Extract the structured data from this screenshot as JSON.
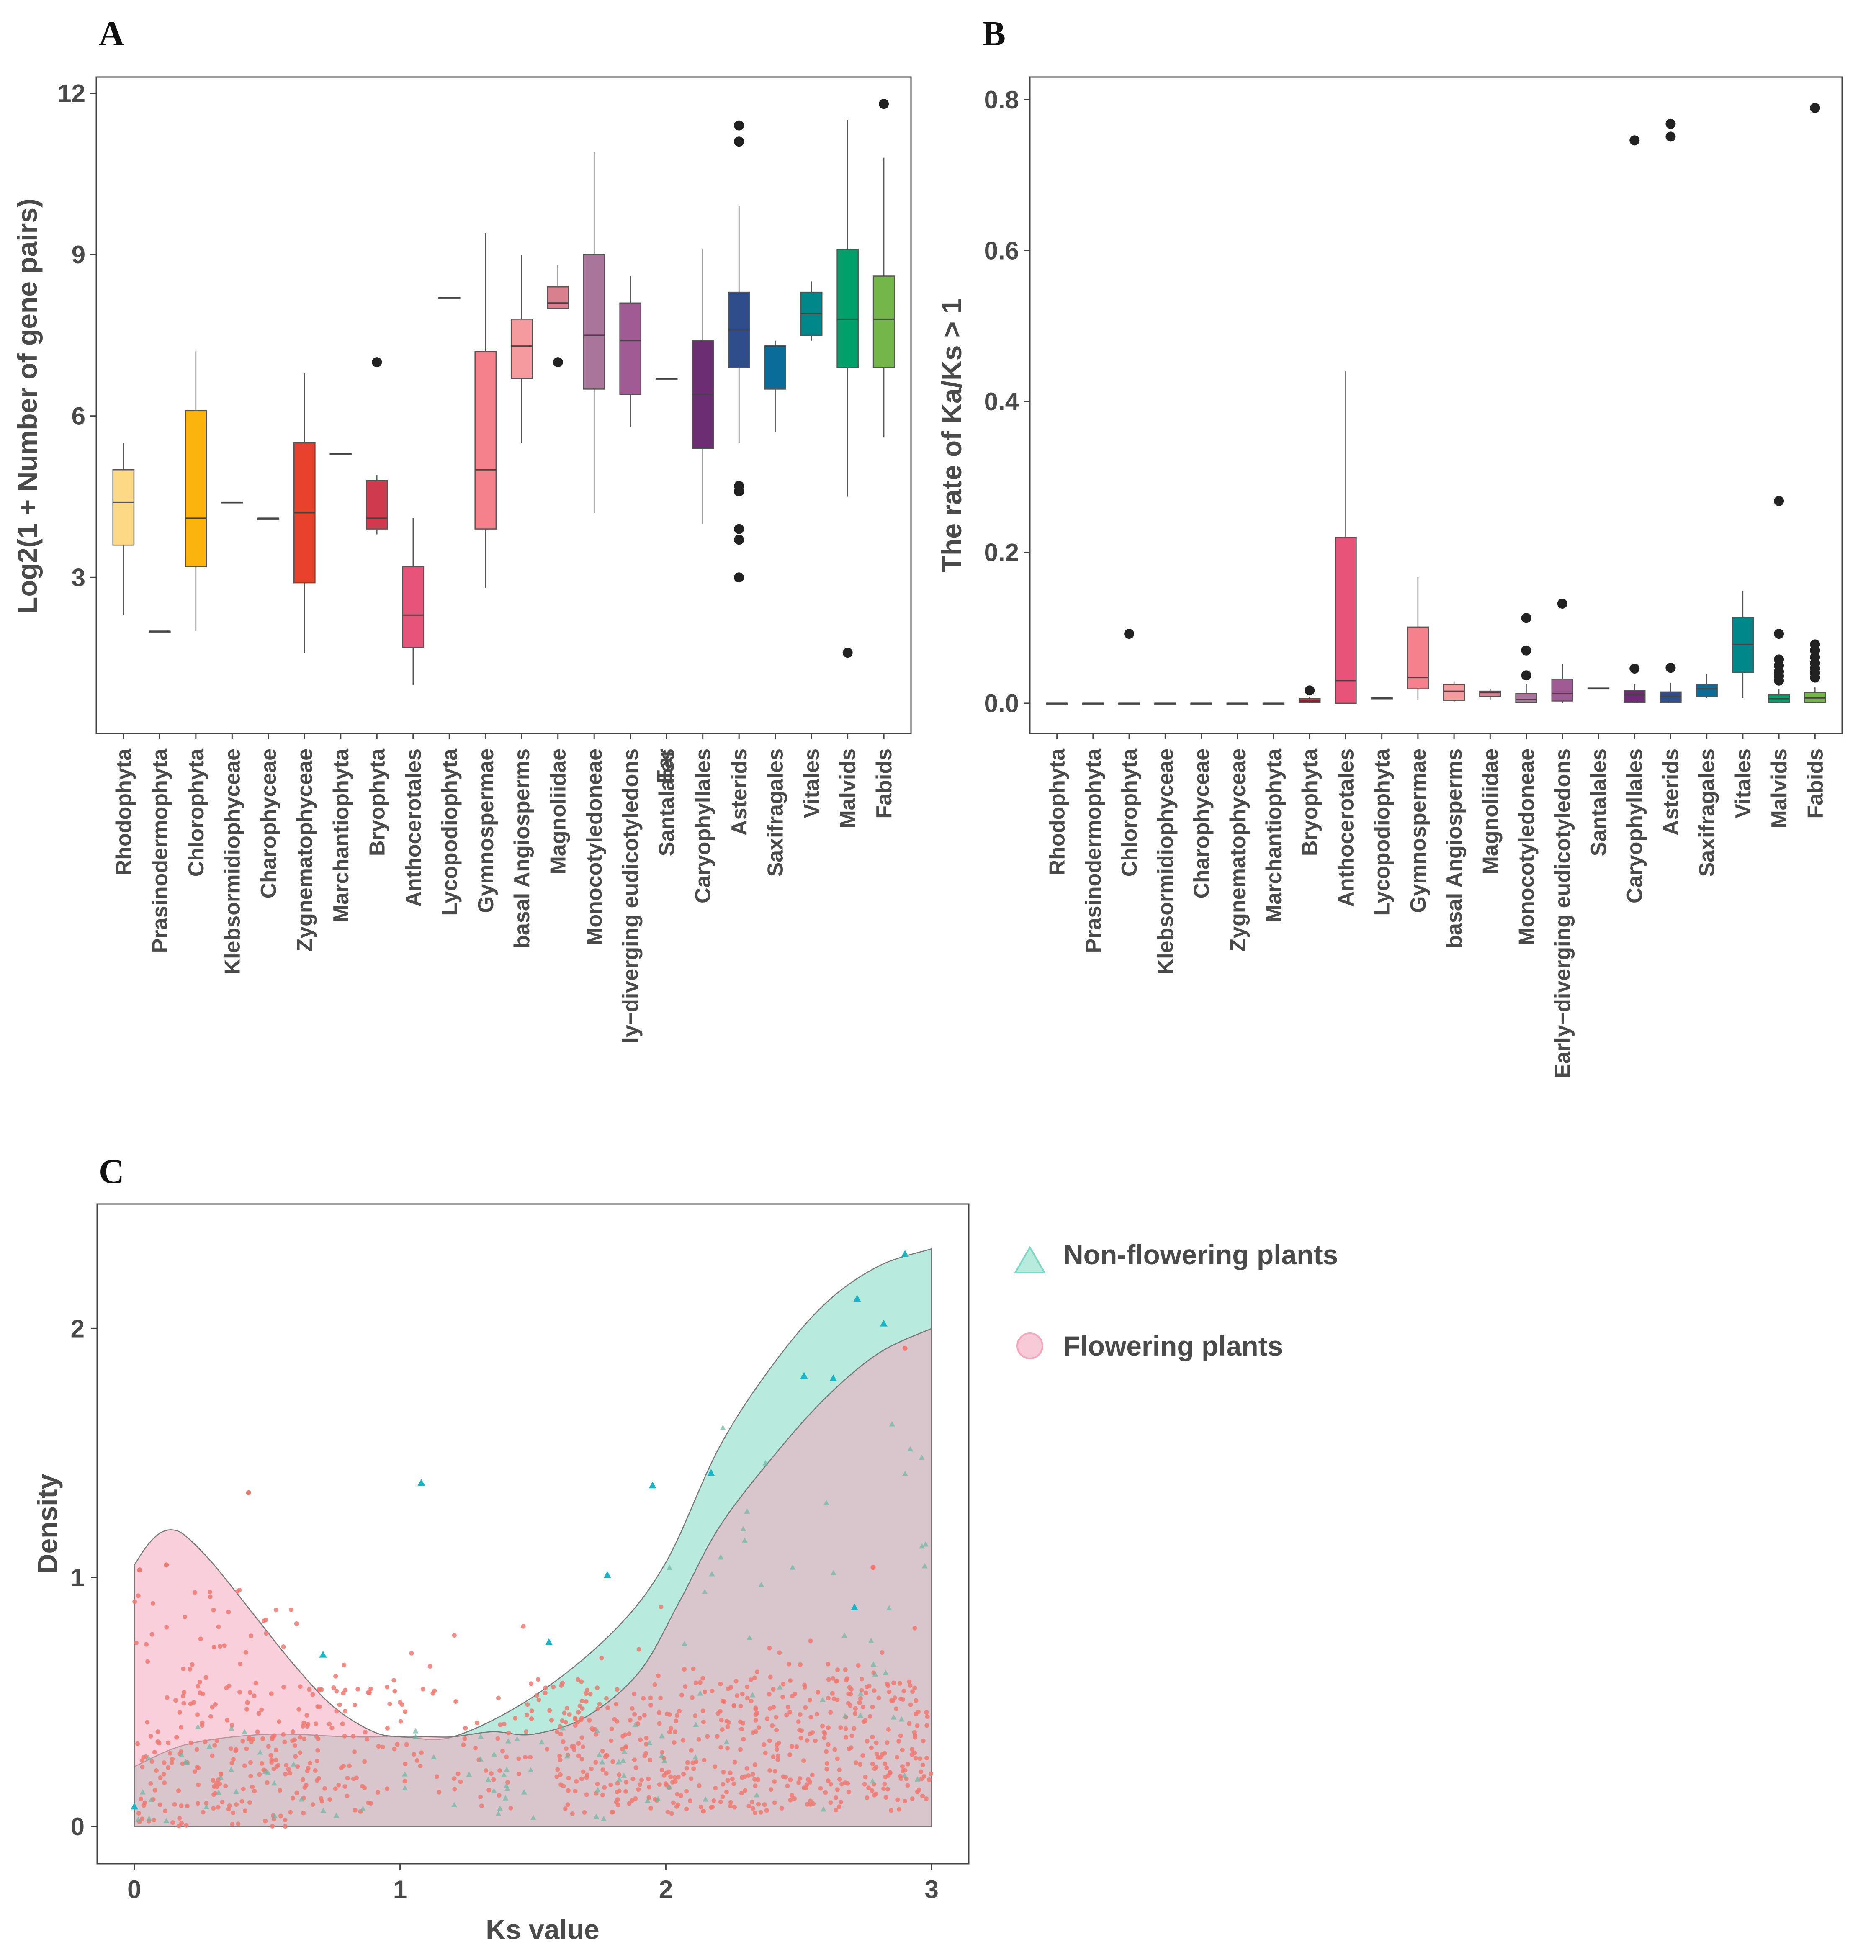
{
  "chart_data": [
    {
      "panel": "A",
      "type": "box",
      "ylabel": "Log2(1 + Number of gene pairs)",
      "xlabel": "",
      "ylim": [
        0.1,
        12.3
      ],
      "yticks": [
        3,
        6,
        9,
        12
      ],
      "ytick_labels": [
        "3",
        "6",
        "9",
        "12"
      ],
      "categories": [
        "Rhodophyta",
        "Prasinodermophyta",
        "Chlorophyta",
        "Klebsormidiophyceae",
        "Charophyceae",
        "Zygnematophyceae",
        "Marchantiophyta",
        "Bryophyta",
        "Anthocerotales",
        "Lycopodiophyta",
        "Gymnospermae",
        "basal Angiosperms",
        "Magnoliidae",
        "Monocotyledoneae",
        "ly−diverging eudicotyledons\nEar",
        "Santalales",
        "Caryophyllales",
        "Asterids",
        "Saxifragales",
        "Vitales",
        "Malvids",
        "Fabids"
      ],
      "boxes": [
        {
          "min": 2.3,
          "q1": 3.6,
          "median": 4.4,
          "q3": 5.0,
          "max": 5.5,
          "outliers": [],
          "color": "#fdd985"
        },
        {
          "min": 2.0,
          "q1": 2.0,
          "median": 2.0,
          "q3": 2.0,
          "max": 2.0,
          "outliers": [],
          "color": "#fdd985"
        },
        {
          "min": 2.0,
          "q1": 3.2,
          "median": 4.1,
          "q3": 6.1,
          "max": 7.2,
          "outliers": [],
          "color": "#fbb40e"
        },
        {
          "min": 4.4,
          "q1": 4.4,
          "median": 4.4,
          "q3": 4.4,
          "max": 4.4,
          "outliers": [],
          "color": "#f59a3a"
        },
        {
          "min": 4.1,
          "q1": 4.1,
          "median": 4.1,
          "q3": 4.1,
          "max": 4.1,
          "outliers": [],
          "color": "#f08a4b"
        },
        {
          "min": 1.6,
          "q1": 2.9,
          "median": 4.2,
          "q3": 5.5,
          "max": 6.8,
          "outliers": [],
          "color": "#e8412c"
        },
        {
          "min": 5.3,
          "q1": 5.3,
          "median": 5.3,
          "q3": 5.3,
          "max": 5.3,
          "outliers": [],
          "color": "#e8412c"
        },
        {
          "min": 3.8,
          "q1": 3.9,
          "median": 4.1,
          "q3": 4.8,
          "max": 4.9,
          "outliers": [
            7.0
          ],
          "color": "#cf3a4e"
        },
        {
          "min": 1.0,
          "q1": 1.7,
          "median": 2.3,
          "q3": 3.2,
          "max": 4.1,
          "outliers": [],
          "color": "#e8537a"
        },
        {
          "min": 8.2,
          "q1": 8.2,
          "median": 8.2,
          "q3": 8.2,
          "max": 8.2,
          "outliers": [],
          "color": "#f07a8a"
        },
        {
          "min": 2.8,
          "q1": 3.9,
          "median": 5.0,
          "q3": 7.2,
          "max": 9.4,
          "outliers": [],
          "color": "#f5818d"
        },
        {
          "min": 5.5,
          "q1": 6.7,
          "median": 7.3,
          "q3": 7.8,
          "max": 9.0,
          "outliers": [],
          "color": "#f59a9e"
        },
        {
          "min": 8.0,
          "q1": 8.0,
          "median": 8.1,
          "q3": 8.4,
          "max": 8.8,
          "outliers": [
            7.0
          ],
          "color": "#d9808f"
        },
        {
          "min": 4.2,
          "q1": 6.5,
          "median": 7.5,
          "q3": 9.0,
          "max": 10.9,
          "outliers": [],
          "color": "#a9759b"
        },
        {
          "min": 5.8,
          "q1": 6.4,
          "median": 7.4,
          "q3": 8.1,
          "max": 8.6,
          "outliers": [],
          "color": "#a15b94"
        },
        {
          "min": 6.7,
          "q1": 6.7,
          "median": 6.7,
          "q3": 6.7,
          "max": 6.7,
          "outliers": [],
          "color": "#7b3a7e"
        },
        {
          "min": 4.0,
          "q1": 5.4,
          "median": 6.4,
          "q3": 7.4,
          "max": 9.1,
          "outliers": [],
          "color": "#6d2d73"
        },
        {
          "min": 5.5,
          "q1": 6.9,
          "median": 7.6,
          "q3": 8.3,
          "max": 9.9,
          "outliers": [
            11.4,
            11.1,
            4.7,
            4.6,
            3.9,
            3.7,
            3.0
          ],
          "color": "#2f4d8a"
        },
        {
          "min": 5.7,
          "q1": 6.5,
          "median": 7.3,
          "q3": 7.3,
          "max": 7.4,
          "outliers": [],
          "color": "#0a6c98"
        },
        {
          "min": 7.4,
          "q1": 7.5,
          "median": 7.9,
          "q3": 8.3,
          "max": 8.5,
          "outliers": [],
          "color": "#00878a"
        },
        {
          "min": 4.5,
          "q1": 6.9,
          "median": 7.8,
          "q3": 9.1,
          "max": 11.5,
          "outliers": [
            1.6
          ],
          "color": "#00a06a"
        },
        {
          "min": 5.6,
          "q1": 6.9,
          "median": 7.8,
          "q3": 8.6,
          "max": 10.8,
          "outliers": [
            11.8
          ],
          "color": "#74b64a"
        }
      ]
    },
    {
      "panel": "B",
      "type": "box",
      "ylabel": "The rate of Ka/Ks > 1",
      "xlabel": "",
      "ylim": [
        -0.04,
        0.83
      ],
      "yticks": [
        0.0,
        0.2,
        0.4,
        0.6,
        0.8
      ],
      "ytick_labels": [
        "0.0",
        "0.2",
        "0.4",
        "0.6",
        "0.8"
      ],
      "categories": [
        "Rhodophyta",
        "Prasinodermophyta",
        "Chlorophyta",
        "Klebsormidiophyceae",
        "Charophyceae",
        "Zygnematophyceae",
        "Marchantiophyta",
        "Bryophyta",
        "Anthocerotales",
        "Lycopodiophyta",
        "Gymnospermae",
        "basal Angiosperms",
        "Magnoliidae",
        "Monocotyledoneae",
        "Early−diverging eudicotyledons",
        "Santalales",
        "Caryophyllales",
        "Asterids",
        "Saxifragales",
        "Vitales",
        "Malvids",
        "Fabids"
      ],
      "boxes": [
        {
          "min": 0,
          "q1": 0,
          "median": 0,
          "q3": 0,
          "max": 0,
          "outliers": [],
          "color": "#fdd985"
        },
        {
          "min": 0,
          "q1": 0,
          "median": 0,
          "q3": 0,
          "max": 0,
          "outliers": [],
          "color": "#fdd985"
        },
        {
          "min": 0,
          "q1": 0,
          "median": 0,
          "q3": 0,
          "max": 0,
          "outliers": [
            0.092
          ],
          "color": "#fbb40e"
        },
        {
          "min": 0,
          "q1": 0,
          "median": 0,
          "q3": 0,
          "max": 0,
          "outliers": [],
          "color": "#f59a3a"
        },
        {
          "min": 0,
          "q1": 0,
          "median": 0,
          "q3": 0,
          "max": 0,
          "outliers": [],
          "color": "#f08a4b"
        },
        {
          "min": 0,
          "q1": 0,
          "median": 0,
          "q3": 0,
          "max": 0,
          "outliers": [],
          "color": "#e8412c"
        },
        {
          "min": 0,
          "q1": 0,
          "median": 0,
          "q3": 0,
          "max": 0,
          "outliers": [],
          "color": "#e8412c"
        },
        {
          "min": 0,
          "q1": 0.001,
          "median": 0.003,
          "q3": 0.006,
          "max": 0.008,
          "outliers": [
            0.017
          ],
          "color": "#cf3a4e"
        },
        {
          "min": 0,
          "q1": 0,
          "median": 0.03,
          "q3": 0.22,
          "max": 0.44,
          "outliers": [],
          "color": "#e8537a"
        },
        {
          "min": 0.007,
          "q1": 0.007,
          "median": 0.007,
          "q3": 0.007,
          "max": 0.007,
          "outliers": [],
          "color": "#f07a8a"
        },
        {
          "min": 0.005,
          "q1": 0.019,
          "median": 0.034,
          "q3": 0.101,
          "max": 0.167,
          "outliers": [],
          "color": "#f5818d"
        },
        {
          "min": 0.002,
          "q1": 0.004,
          "median": 0.016,
          "q3": 0.025,
          "max": 0.029,
          "outliers": [],
          "color": "#f59a9e"
        },
        {
          "min": 0.005,
          "q1": 0.009,
          "median": 0.014,
          "q3": 0.016,
          "max": 0.019,
          "outliers": [],
          "color": "#d9808f"
        },
        {
          "min": 0,
          "q1": 0.001,
          "median": 0.005,
          "q3": 0.013,
          "max": 0.025,
          "outliers": [
            0.113,
            0.07,
            0.037
          ],
          "color": "#a9759b"
        },
        {
          "min": 0,
          "q1": 0.003,
          "median": 0.013,
          "q3": 0.032,
          "max": 0.052,
          "outliers": [
            0.132
          ],
          "color": "#a15b94"
        },
        {
          "min": 0.02,
          "q1": 0.02,
          "median": 0.02,
          "q3": 0.02,
          "max": 0.02,
          "outliers": [],
          "color": "#7b3a7e"
        },
        {
          "min": 0,
          "q1": 0.001,
          "median": 0.011,
          "q3": 0.017,
          "max": 0.025,
          "outliers": [
            0.746,
            0.046
          ],
          "color": "#6d2d73"
        },
        {
          "min": 0,
          "q1": 0.001,
          "median": 0.009,
          "q3": 0.015,
          "max": 0.027,
          "outliers": [
            0.768,
            0.751,
            0.047
          ],
          "color": "#2f4d8a"
        },
        {
          "min": 0.007,
          "q1": 0.009,
          "median": 0.019,
          "q3": 0.025,
          "max": 0.039,
          "outliers": [],
          "color": "#0a6c98"
        },
        {
          "min": 0.007,
          "q1": 0.041,
          "median": 0.078,
          "q3": 0.114,
          "max": 0.149,
          "outliers": [],
          "color": "#00878a"
        },
        {
          "min": 0,
          "q1": 0.001,
          "median": 0.006,
          "q3": 0.011,
          "max": 0.019,
          "outliers": [
            0.268,
            0.092,
            0.058,
            0.05,
            0.042,
            0.036,
            0.03
          ],
          "color": "#00a06a"
        },
        {
          "min": 0,
          "q1": 0.001,
          "median": 0.007,
          "q3": 0.014,
          "max": 0.021,
          "outliers": [
            0.789,
            0.078,
            0.07,
            0.061,
            0.053,
            0.046,
            0.04,
            0.034
          ],
          "color": "#74b64a"
        }
      ]
    },
    {
      "panel": "C",
      "type": "area",
      "xlabel": "Ks value",
      "ylabel": "Density",
      "xlim": [
        -0.14,
        3.14
      ],
      "ylim": [
        -0.15,
        2.5
      ],
      "xticks": [
        0,
        1,
        2,
        3
      ],
      "xtick_labels": [
        "0",
        "1",
        "2",
        "3"
      ],
      "yticks": [
        0,
        1,
        2
      ],
      "ytick_labels": [
        "0",
        "1",
        "2"
      ],
      "series": [
        {
          "name": "Non-flowering plants",
          "marker": "triangle",
          "color": "#7dd8c3",
          "point_color": "#17b6c7",
          "x": [
            0,
            0.2,
            0.5,
            0.8,
            1.0,
            1.2,
            1.5,
            1.8,
            2.0,
            2.2,
            2.4,
            2.6,
            2.8,
            3.0
          ],
          "y": [
            0.24,
            0.33,
            0.37,
            0.36,
            0.36,
            0.36,
            0.52,
            0.78,
            1.06,
            1.52,
            1.85,
            2.1,
            2.25,
            2.32
          ],
          "scatter": [
            [
              0.71,
              0.69
            ],
            [
              1.08,
              1.38
            ],
            [
              1.56,
              0.74
            ],
            [
              1.78,
              1.01
            ],
            [
              1.95,
              1.37
            ],
            [
              2.17,
              1.42
            ],
            [
              2.52,
              1.81
            ],
            [
              2.72,
              2.12
            ],
            [
              2.82,
              2.02
            ],
            [
              2.9,
              2.3
            ],
            [
              0.0,
              0.08
            ],
            [
              2.63,
              1.8
            ],
            [
              2.71,
              0.88
            ]
          ]
        },
        {
          "name": "Flowering plants",
          "marker": "circle",
          "color": "#f4a7bd",
          "point_color": "#f0786f",
          "x": [
            0,
            0.05,
            0.1,
            0.15,
            0.2,
            0.3,
            0.45,
            0.6,
            0.75,
            0.9,
            1.0,
            1.1,
            1.2,
            1.35,
            1.5,
            1.7,
            1.9,
            2.05,
            2.2,
            2.4,
            2.6,
            2.8,
            3.0
          ],
          "y": [
            1.05,
            1.13,
            1.18,
            1.19,
            1.16,
            1.05,
            0.85,
            0.65,
            0.48,
            0.38,
            0.36,
            0.36,
            0.36,
            0.38,
            0.37,
            0.44,
            0.62,
            0.9,
            1.2,
            1.48,
            1.72,
            1.9,
            2.0
          ],
          "scatter_note": "dense cloud of jittered points mostly between y=0 and y=0.9",
          "scatter_highlights": [
            [
              0.43,
              1.34
            ],
            [
              0.02,
              1.03
            ],
            [
              0.12,
              1.05
            ],
            [
              2.9,
              1.92
            ],
            [
              2.78,
              1.04
            ]
          ]
        }
      ],
      "legend": [
        {
          "label": "Non-flowering plants",
          "marker": "triangle",
          "color": "#7dd8c3"
        },
        {
          "label": "Flowering plants",
          "marker": "circle",
          "color": "#f4a7bd"
        }
      ]
    }
  ],
  "panels": {
    "a_letter": "A",
    "b_letter": "B",
    "c_letter": "C"
  }
}
